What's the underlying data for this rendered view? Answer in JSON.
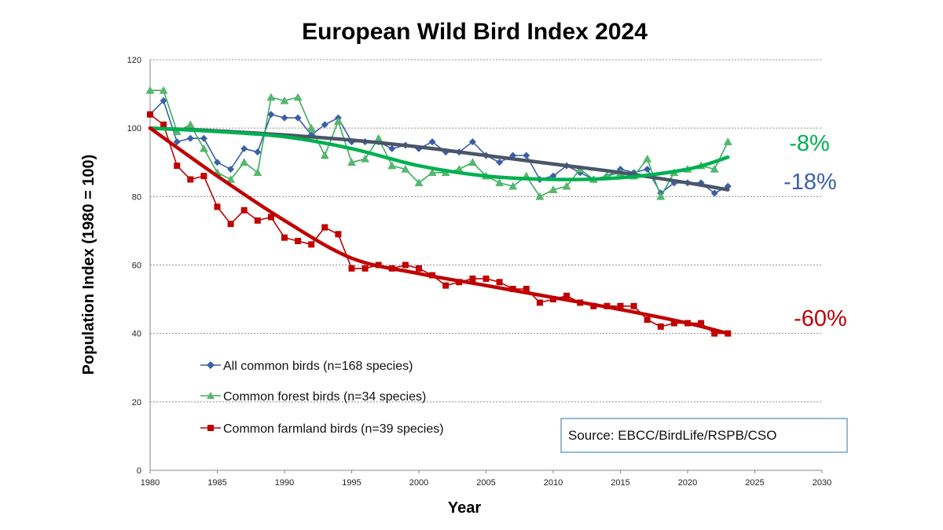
{
  "chart_data": {
    "type": "line",
    "title": "European Wild Bird Index 2024",
    "xlabel": "Year",
    "ylabel": "Population Index (1980 = 100)",
    "xlim": [
      1980,
      2030
    ],
    "ylim": [
      0,
      120
    ],
    "xticks": [
      "1980",
      "1985",
      "1990",
      "1995",
      "2000",
      "2005",
      "2010",
      "2015",
      "2020",
      "2025",
      "2030"
    ],
    "yticks": [
      "0",
      "20",
      "40",
      "60",
      "80",
      "100",
      "120"
    ],
    "grid": "horizontal dashed",
    "legend_position": "bottom-left",
    "series": [
      {
        "name": "All common birds (n=168 species)",
        "color": "#3d5ea8",
        "marker": "diamond",
        "x": [
          1980,
          1981,
          1982,
          1983,
          1984,
          1985,
          1986,
          1987,
          1988,
          1989,
          1990,
          1991,
          1992,
          1993,
          1994,
          1995,
          1996,
          1997,
          1998,
          1999,
          2000,
          2001,
          2002,
          2003,
          2004,
          2005,
          2006,
          2007,
          2008,
          2009,
          2010,
          2011,
          2012,
          2013,
          2014,
          2015,
          2016,
          2017,
          2018,
          2019,
          2020,
          2021,
          2022,
          2023
        ],
        "values": [
          104,
          108,
          96,
          97,
          97,
          90,
          88,
          94,
          93,
          104,
          103,
          103,
          98,
          101,
          103,
          96,
          96,
          96,
          94,
          95,
          94,
          96,
          93,
          93,
          96,
          92,
          90,
          92,
          92,
          85,
          86,
          89,
          87,
          85,
          86,
          88,
          87,
          88,
          81,
          84,
          84,
          84,
          81,
          83
        ]
      },
      {
        "name": "Common forest birds (n=34 species)",
        "color": "#3aae5a",
        "marker": "triangle",
        "x": [
          1980,
          1981,
          1982,
          1983,
          1984,
          1985,
          1986,
          1987,
          1988,
          1989,
          1990,
          1991,
          1992,
          1993,
          1994,
          1995,
          1996,
          1997,
          1998,
          1999,
          2000,
          2001,
          2002,
          2003,
          2004,
          2005,
          2006,
          2007,
          2008,
          2009,
          2010,
          2011,
          2012,
          2013,
          2014,
          2015,
          2016,
          2017,
          2018,
          2019,
          2020,
          2021,
          2022,
          2023
        ],
        "values": [
          111,
          111,
          99,
          101,
          94,
          87,
          85,
          90,
          87,
          109,
          108,
          109,
          100,
          92,
          102,
          90,
          91,
          97,
          89,
          88,
          84,
          87,
          87,
          88,
          90,
          86,
          84,
          83,
          86,
          80,
          82,
          83,
          88,
          85,
          86,
          87,
          86,
          91,
          80,
          87,
          88,
          89,
          88,
          96
        ]
      },
      {
        "name": "Common farmland birds (n=39 species)",
        "color": "#c00000",
        "marker": "square",
        "x": [
          1980,
          1981,
          1982,
          1983,
          1984,
          1985,
          1986,
          1987,
          1988,
          1989,
          1990,
          1991,
          1992,
          1993,
          1994,
          1995,
          1996,
          1997,
          1998,
          1999,
          2000,
          2001,
          2002,
          2003,
          2004,
          2005,
          2006,
          2007,
          2008,
          2009,
          2010,
          2011,
          2012,
          2013,
          2014,
          2015,
          2016,
          2017,
          2018,
          2019,
          2020,
          2021,
          2022,
          2023
        ],
        "values": [
          104,
          101,
          89,
          85,
          86,
          77,
          72,
          76,
          73,
          74,
          68,
          67,
          66,
          71,
          69,
          59,
          59,
          60,
          59,
          60,
          59,
          57,
          54,
          55,
          56,
          56,
          55,
          53,
          53,
          49,
          50,
          51,
          49,
          48,
          48,
          48,
          48,
          44,
          42,
          43,
          43,
          43,
          40,
          40
        ]
      }
    ],
    "trends": [
      {
        "series": "All common birds (n=168 species)",
        "color": "#4a5568",
        "x": [
          1980,
          1985,
          1990,
          1995,
          2000,
          2005,
          2010,
          2015,
          2020,
          2023
        ],
        "values": [
          100,
          99.2,
          98,
          96.5,
          94.5,
          92,
          89.5,
          87,
          84,
          82
        ]
      },
      {
        "series": "Common forest birds (n=34 species)",
        "color": "#00b050",
        "x": [
          1980,
          1985,
          1990,
          1995,
          2000,
          2005,
          2010,
          2015,
          2020,
          2023
        ],
        "values": [
          100,
          99,
          97.5,
          94,
          89,
          86,
          85,
          85.5,
          88,
          91.5
        ]
      },
      {
        "series": "Common farmland birds (n=39 species)",
        "color": "#c00000",
        "x": [
          1980,
          1985,
          1990,
          1995,
          2000,
          2005,
          2010,
          2015,
          2020,
          2023
        ],
        "values": [
          100,
          86,
          73,
          62,
          57.5,
          54,
          50.5,
          47,
          43,
          40
        ]
      }
    ],
    "annotations": [
      {
        "text": "-8%",
        "color": "#00b050"
      },
      {
        "text": "-18%",
        "color": "#3d5ea8"
      },
      {
        "text": "-60%",
        "color": "#c00000"
      }
    ],
    "source": "Source: EBCC/BirdLife/RSPB/CSO"
  }
}
